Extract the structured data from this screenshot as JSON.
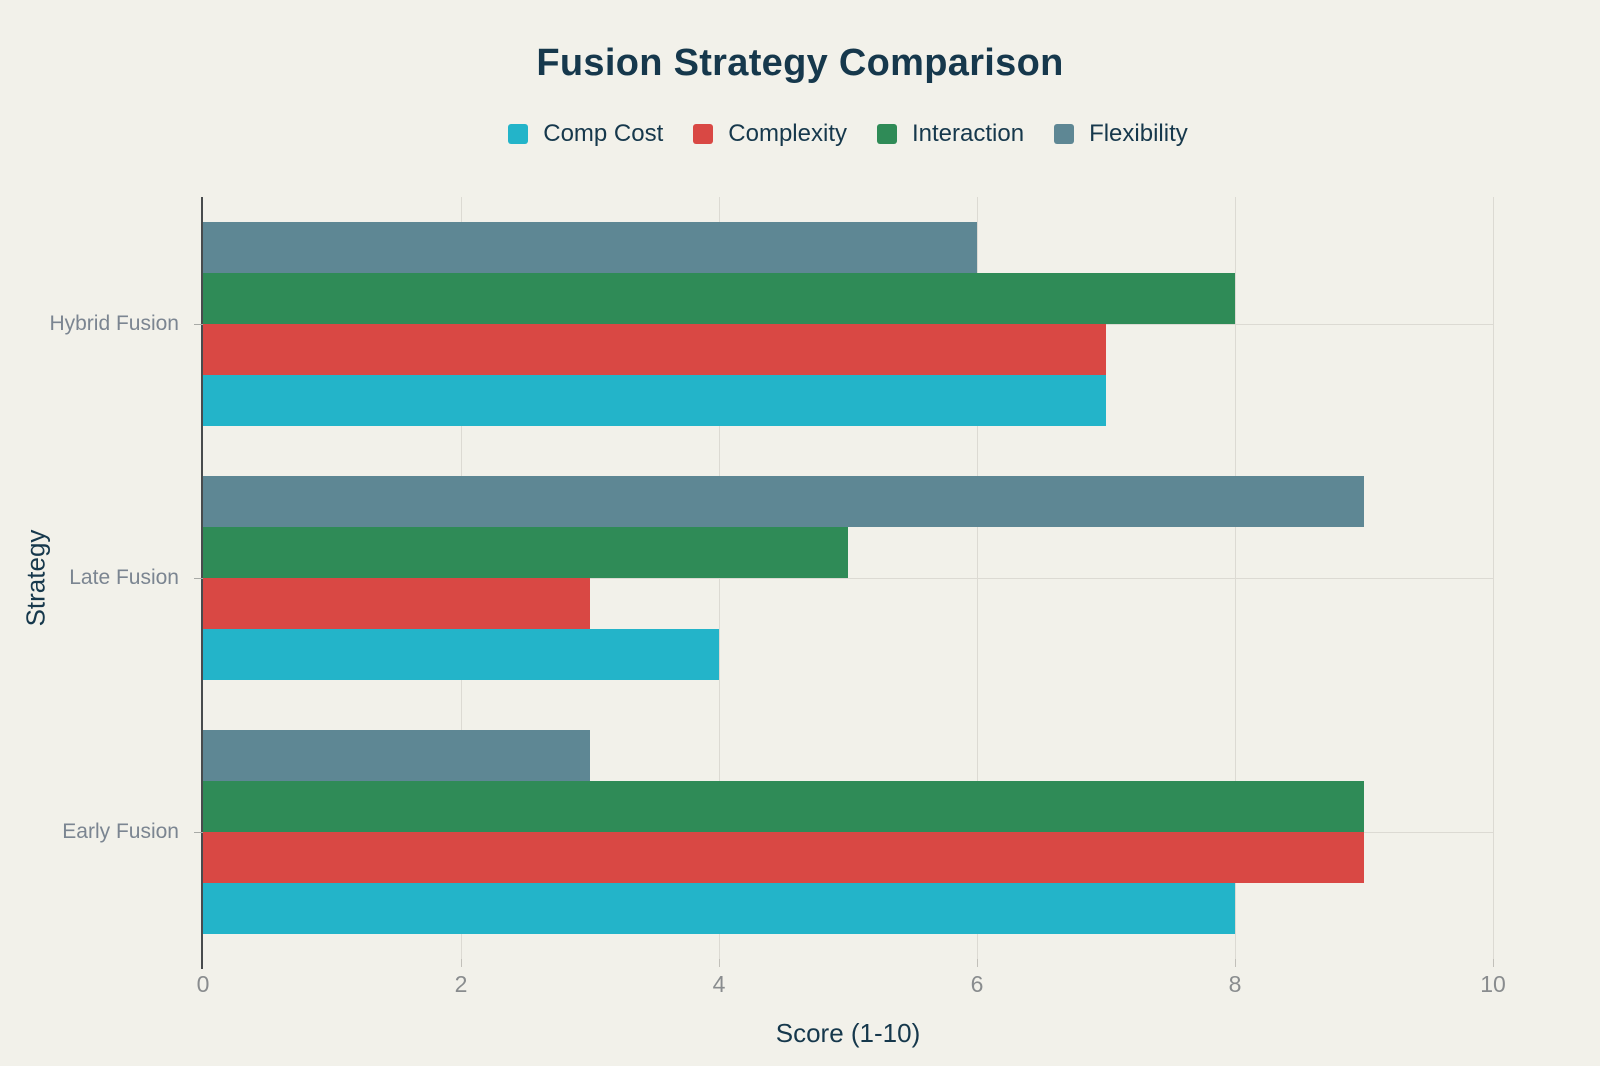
{
  "page": {
    "background": "#f2f1ea"
  },
  "chart_data": {
    "type": "bar",
    "orientation": "horizontal",
    "title": "Fusion Strategy Comparison",
    "xlabel": "Score (1-10)",
    "ylabel": "Strategy",
    "xlim": [
      0,
      10
    ],
    "x_ticks": [
      0,
      2,
      4,
      6,
      8,
      10
    ],
    "categories": [
      "Hybrid Fusion",
      "Late Fusion",
      "Early Fusion"
    ],
    "series": [
      {
        "name": "Comp Cost",
        "color": "#23b4c9",
        "values": [
          7,
          4,
          8
        ]
      },
      {
        "name": "Complexity",
        "color": "#d94844",
        "values": [
          7,
          3,
          9
        ]
      },
      {
        "name": "Interaction",
        "color": "#2f8b57",
        "values": [
          8,
          5,
          9
        ]
      },
      {
        "name": "Flexibility",
        "color": "#5e8794",
        "values": [
          6,
          9,
          3
        ]
      }
    ],
    "legend_position": "top",
    "grid": true,
    "colors": {
      "title": "#16384c",
      "axis_title": "#16384c",
      "category_label": "#7b8591",
      "tick_label": "#898c8e",
      "grid_line": "#dcdad3",
      "axis_line": "#484b4d"
    }
  }
}
